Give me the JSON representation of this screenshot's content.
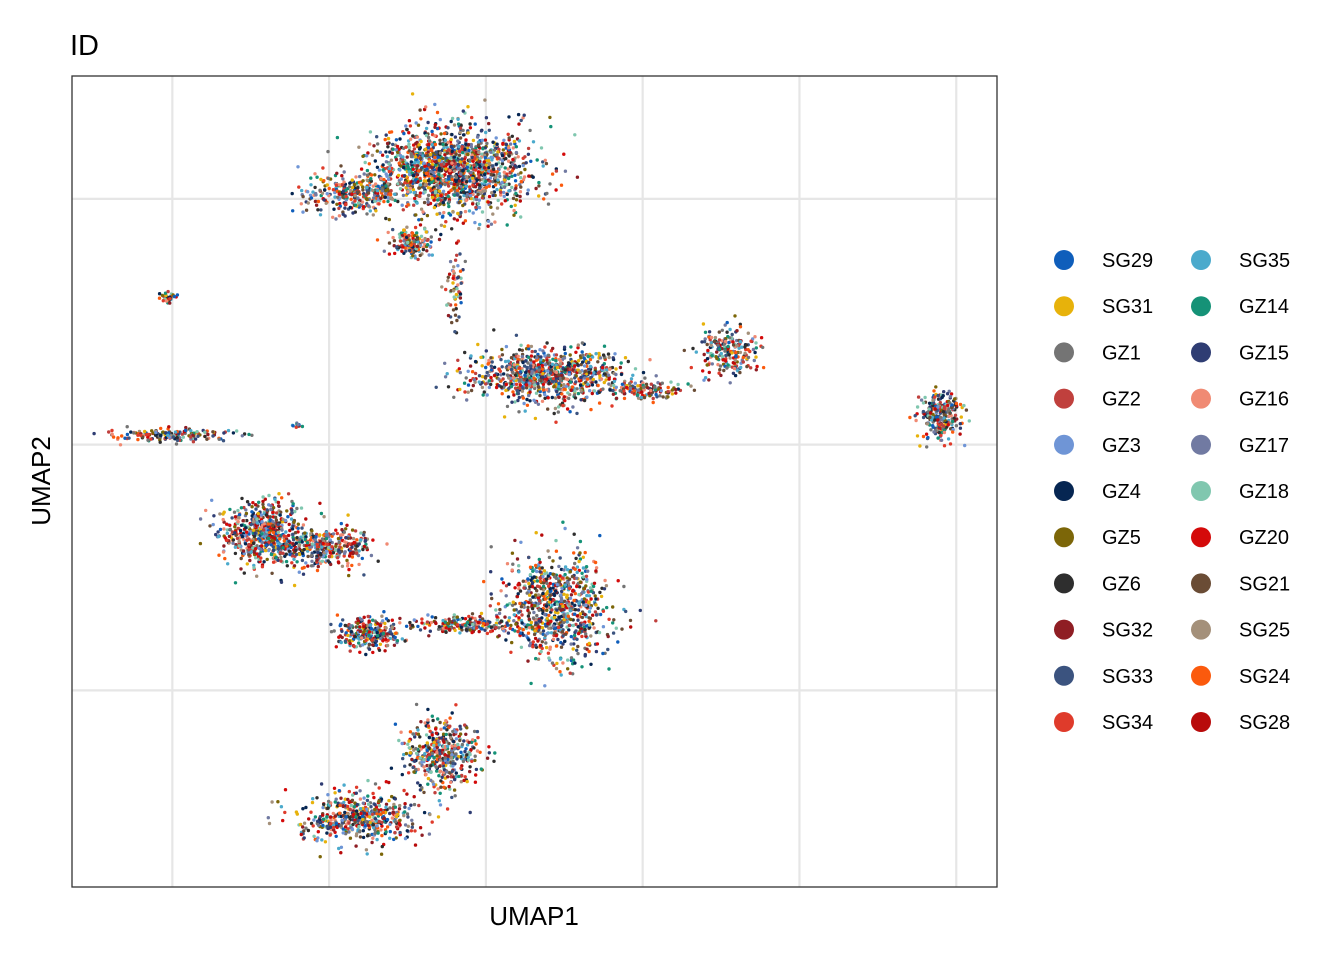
{
  "chart_data": {
    "type": "scatter",
    "title": "ID",
    "xlabel": "UMAP1",
    "ylabel": "UMAP2",
    "xlim": [
      -6.5,
      23
    ],
    "ylim": [
      -18,
      15
    ],
    "x_ticks_shown": false,
    "y_ticks_shown": false,
    "grid": true,
    "gridlines_x": [
      -3.3,
      1.7,
      6.7,
      11.7,
      16.7,
      21.7
    ],
    "gridlines_y": [
      -10,
      0,
      10
    ],
    "legend_placement": "right",
    "legend_columns": 2,
    "series": [
      {
        "name": "SG29",
        "color": "#0F5EBB"
      },
      {
        "name": "SG31",
        "color": "#E7B20B"
      },
      {
        "name": "GZ1",
        "color": "#747474"
      },
      {
        "name": "GZ2",
        "color": "#C0403D"
      },
      {
        "name": "GZ3",
        "color": "#6F95D6"
      },
      {
        "name": "GZ4",
        "color": "#062652"
      },
      {
        "name": "GZ5",
        "color": "#7C6608"
      },
      {
        "name": "GZ6",
        "color": "#2E2E2E"
      },
      {
        "name": "SG32",
        "color": "#8F1E24"
      },
      {
        "name": "SG33",
        "color": "#3B537F"
      },
      {
        "name": "SG34",
        "color": "#DF3B2B"
      },
      {
        "name": "SG35",
        "color": "#4BAACC"
      },
      {
        "name": "GZ14",
        "color": "#159277"
      },
      {
        "name": "GZ15",
        "color": "#2F3D73"
      },
      {
        "name": "GZ16",
        "color": "#F08A73"
      },
      {
        "name": "GZ17",
        "color": "#717AA2"
      },
      {
        "name": "GZ18",
        "color": "#80C7AF"
      },
      {
        "name": "GZ20",
        "color": "#D40A0A"
      },
      {
        "name": "SG21",
        "color": "#6A4C35"
      },
      {
        "name": "SG25",
        "color": "#A4907A"
      },
      {
        "name": "SG24",
        "color": "#FB5A0D"
      },
      {
        "name": "SG28",
        "color": "#B80B0B"
      }
    ],
    "clusters": [
      {
        "center": [
          5.6,
          11.2
        ],
        "spread": [
          2.3,
          1.6
        ],
        "n": 1500
      },
      {
        "center": [
          2.5,
          10.2
        ],
        "spread": [
          1.6,
          0.7
        ],
        "n": 300
      },
      {
        "center": [
          4.3,
          8.2
        ],
        "spread": [
          0.6,
          0.5
        ],
        "n": 150
      },
      {
        "center": [
          5.7,
          6.2
        ],
        "spread": [
          0.3,
          1.2
        ],
        "n": 60
      },
      {
        "center": [
          8.7,
          2.8
        ],
        "spread": [
          2.1,
          1.0
        ],
        "n": 900
      },
      {
        "center": [
          11.8,
          2.2
        ],
        "spread": [
          1.2,
          0.3
        ],
        "n": 120
      },
      {
        "center": [
          14.4,
          3.8
        ],
        "spread": [
          0.8,
          0.8
        ],
        "n": 220
      },
      {
        "center": [
          21.2,
          1.2
        ],
        "spread": [
          0.6,
          0.9
        ],
        "n": 260
      },
      {
        "center": [
          -3.4,
          6.0
        ],
        "spread": [
          0.2,
          0.2
        ],
        "n": 30
      },
      {
        "center": [
          -3.3,
          0.4
        ],
        "spread": [
          1.7,
          0.25
        ],
        "n": 180
      },
      {
        "center": [
          0.7,
          0.8
        ],
        "spread": [
          0.2,
          0.1
        ],
        "n": 10
      },
      {
        "center": [
          -0.4,
          -3.6
        ],
        "spread": [
          1.2,
          1.2
        ],
        "n": 600
      },
      {
        "center": [
          1.6,
          -4.2
        ],
        "spread": [
          1.3,
          0.7
        ],
        "n": 350
      },
      {
        "center": [
          9.0,
          -6.6
        ],
        "spread": [
          1.5,
          1.9
        ],
        "n": 800
      },
      {
        "center": [
          6.2,
          -7.3
        ],
        "spread": [
          1.8,
          0.3
        ],
        "n": 220
      },
      {
        "center": [
          3.0,
          -7.7
        ],
        "spread": [
          1.0,
          0.6
        ],
        "n": 260
      },
      {
        "center": [
          5.3,
          -12.6
        ],
        "spread": [
          1.0,
          1.3
        ],
        "n": 450
      },
      {
        "center": [
          2.6,
          -15.2
        ],
        "spread": [
          1.7,
          0.9
        ],
        "n": 500
      }
    ]
  }
}
